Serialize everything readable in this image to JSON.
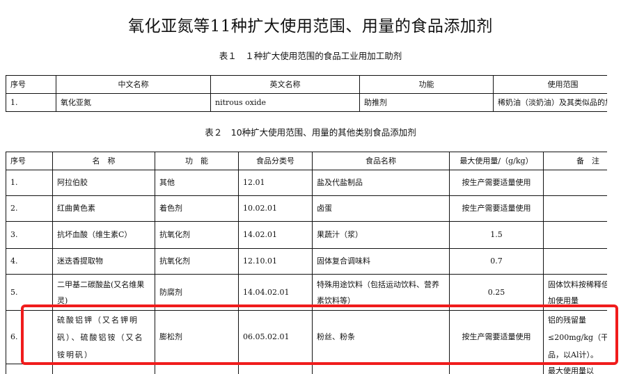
{
  "title": "氧化亚氮等11种扩大使用范围、用量的食品添加剂",
  "table1": {
    "caption": "表１　１种扩大使用范围的食品工业用加工助剂",
    "headers": [
      "序号",
      "中文名称",
      "英文名称",
      "功能",
      "使用范围"
    ],
    "rows": [
      [
        "1.",
        "氧化亚氮",
        "nitrous oxide",
        "助推剂",
        "稀奶油（淡奶油）及其类似品的加"
      ]
    ]
  },
  "table2": {
    "caption": "表２　10种扩大使用范围、用量的其他类别食品添加剂",
    "headers": [
      "序号",
      "名　称",
      "功　能",
      "食品分类号",
      "食品名称",
      "最大使用量/（g/kg）",
      "备　注"
    ],
    "rows": [
      [
        "1.",
        "阿拉伯胶",
        "其他",
        "12.01",
        "盐及代盐制品",
        "按生产需要适量使用",
        ""
      ],
      [
        "2.",
        "红曲黄色素",
        "着色剂",
        "10.02.01",
        "卤蛋",
        "按生产需要适量使用",
        ""
      ],
      [
        "3.",
        "抗坏血酸（维生素C）",
        "抗氧化剂",
        "14.02.01",
        "果蔬汁（浆）",
        "1.5",
        ""
      ],
      [
        "4.",
        "迷迭香提取物",
        "抗氧化剂",
        "12.10.01",
        "固体复合调味料",
        "0.7",
        ""
      ],
      [
        "5.",
        "二甲基二碳酸盐(又名维果灵)",
        "防腐剂",
        "14.04.02.01",
        "特殊用途饮料（包括运动饮料、营养素饮料等）",
        "0.25",
        "固体饮料按稀释倍数增加使用量"
      ],
      [
        "6.",
        "硫酸铝钾（又名钾明矾）、硫酸铝铵（又名铵明矾）",
        "膨松剂",
        "06.05.02.01",
        "粉丝、粉条",
        "按生产需要适量使用",
        "铝的残留量≤200mg/kg（干样品，以Al计）。"
      ],
      [
        "",
        "",
        "",
        "",
        "",
        "",
        "最大使用量以"
      ]
    ]
  },
  "highlight_color": "#f01c1c"
}
